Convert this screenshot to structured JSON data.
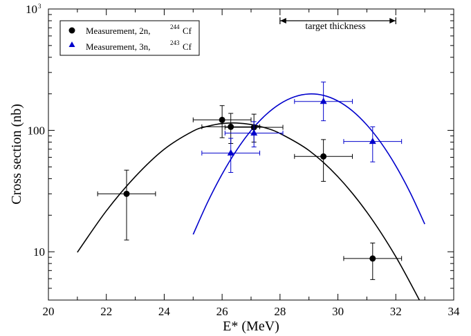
{
  "chart_data": {
    "type": "scatter",
    "xlabel": "E* (MeV)",
    "ylabel": "Cross section (nb)",
    "xlim": [
      20,
      34
    ],
    "ylim": [
      4,
      1000
    ],
    "yscale": "log",
    "x_ticks": [
      20,
      22,
      24,
      26,
      28,
      30,
      32,
      34
    ],
    "y_ticks": [
      {
        "value": 10,
        "label": "10"
      },
      {
        "value": 100,
        "label": "100"
      },
      {
        "value": 1000,
        "label": "10",
        "sup": "3"
      }
    ],
    "legend": {
      "placement": "top-left",
      "entries": [
        {
          "text": "Measurement, 2n,",
          "sup": "244",
          "isotope": "Cf",
          "marker": "circle",
          "color": "#000000"
        },
        {
          "text": "Measurement, 3n,",
          "sup": "243",
          "isotope": "Cf",
          "marker": "triangle",
          "color": "#0000cc"
        }
      ]
    },
    "annotation": {
      "text": "target thickness",
      "x_start": 28,
      "x_end": 32,
      "y": 800
    },
    "series": [
      {
        "marker": "circle",
        "color": "#000000",
        "points": [
          {
            "x": 22.7,
            "y": 30,
            "xerr": [
              21.7,
              23.7
            ],
            "yerr": [
              12.5,
              47
            ]
          },
          {
            "x": 26.0,
            "y": 122,
            "xerr": [
              25.0,
              27.0
            ],
            "yerr": [
              87,
              160
            ]
          },
          {
            "x": 26.3,
            "y": 107,
            "xerr": [
              25.3,
              27.3
            ],
            "yerr": [
              78,
              138
            ]
          },
          {
            "x": 27.1,
            "y": 106,
            "xerr": [
              26.1,
              28.1
            ],
            "yerr": [
              80,
              136
            ]
          },
          {
            "x": 29.5,
            "y": 61,
            "xerr": [
              28.5,
              30.5
            ],
            "yerr": [
              38,
              84
            ]
          },
          {
            "x": 31.2,
            "y": 8.8,
            "xerr": [
              30.2,
              32.2
            ],
            "yerr": [
              5.9,
              11.8
            ]
          }
        ],
        "fit": [
          [
            21.0,
            9.9
          ],
          [
            22.0,
            21.7
          ],
          [
            23.0,
            41.6
          ],
          [
            24.0,
            69.9
          ],
          [
            25.0,
            98.7
          ],
          [
            25.5,
            108.0
          ],
          [
            26.0,
            113.8
          ],
          [
            26.5,
            115.0
          ],
          [
            27.0,
            111.8
          ],
          [
            27.5,
            104.8
          ],
          [
            28.0,
            94.3
          ],
          [
            29.0,
            68.3
          ],
          [
            30.0,
            41.5
          ],
          [
            31.0,
            21.2
          ],
          [
            32.0,
            9.1
          ],
          [
            33.0,
            3.3
          ]
        ]
      },
      {
        "marker": "triangle",
        "color": "#0000cc",
        "points": [
          {
            "x": 26.3,
            "y": 65,
            "xerr": [
              25.3,
              27.3
            ],
            "yerr": [
              45,
              86
            ]
          },
          {
            "x": 27.1,
            "y": 95,
            "xerr": [
              26.1,
              28.1
            ],
            "yerr": [
              73,
              118
            ]
          },
          {
            "x": 29.5,
            "y": 173,
            "xerr": [
              28.5,
              30.5
            ],
            "yerr": [
              120,
              250
            ]
          },
          {
            "x": 31.2,
            "y": 81,
            "xerr": [
              30.2,
              32.2
            ],
            "yerr": [
              55,
              107
            ]
          }
        ],
        "fit": [
          [
            25.0,
            13.9
          ],
          [
            25.5,
            25.6
          ],
          [
            26.0,
            43.6
          ],
          [
            26.5,
            68.6
          ],
          [
            27.0,
            99.7
          ],
          [
            27.5,
            133.7
          ],
          [
            28.0,
            165.5
          ],
          [
            28.5,
            189.2
          ],
          [
            29.0,
            199.5
          ],
          [
            29.5,
            194.2
          ],
          [
            30.0,
            174.5
          ],
          [
            30.5,
            144.8
          ],
          [
            31.0,
            110.8
          ],
          [
            31.5,
            78.3
          ],
          [
            32.0,
            51.0
          ],
          [
            32.5,
            30.6
          ],
          [
            33.0,
            16.9
          ]
        ]
      }
    ]
  }
}
